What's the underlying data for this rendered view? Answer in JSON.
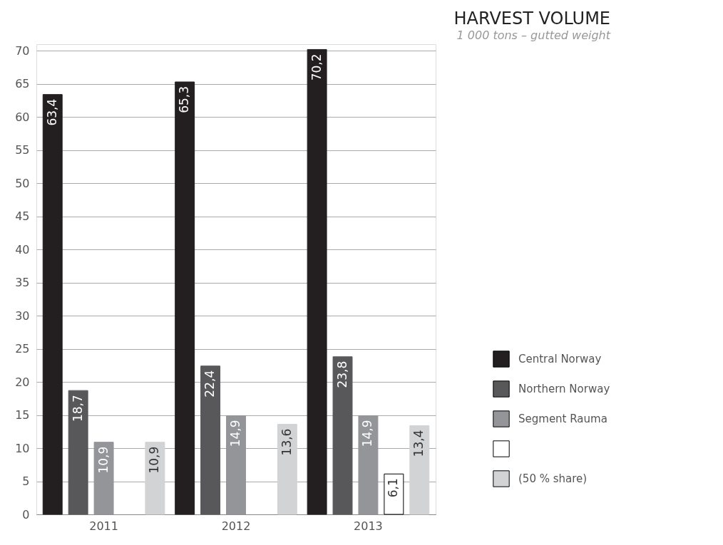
{
  "chart_data": {
    "type": "bar",
    "title": "HARVEST VOLUME",
    "subtitle": "1 000 tons – gutted weight",
    "categories": [
      "2011",
      "2012",
      "2013"
    ],
    "series": [
      {
        "name": "Central Norway",
        "color": "#231f20",
        "values": [
          63.4,
          65.3,
          70.2
        ],
        "value_labels": [
          "63,4",
          "65,3",
          "70,2"
        ]
      },
      {
        "name": "Northern Norway",
        "color": "#58585a",
        "values": [
          18.7,
          22.4,
          23.8
        ],
        "value_labels": [
          "18,7",
          "22,4",
          "23,8"
        ]
      },
      {
        "name": "Segment Rauma",
        "color": "#939598",
        "values": [
          10.9,
          14.9,
          14.9
        ],
        "value_labels": [
          "10,9",
          "14,9",
          "14,9"
        ]
      },
      {
        "color": "#ffffff",
        "values": [
          null,
          null,
          6.1
        ],
        "value_labels": [
          null,
          null,
          "6,1"
        ]
      },
      {
        "name": "(50 % share)",
        "color": "#d1d3d4",
        "values": [
          10.9,
          13.6,
          13.4
        ],
        "value_labels": [
          "10,9",
          "13,6",
          "13,4"
        ]
      }
    ],
    "ylim": [
      0,
      71
    ],
    "yticks": [
      0,
      5,
      10,
      15,
      20,
      25,
      30,
      35,
      40,
      45,
      50,
      55,
      60,
      65,
      70
    ],
    "grid": "y",
    "legend": "right"
  }
}
